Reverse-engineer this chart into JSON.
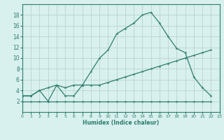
{
  "xlabel": "Humidex (Indice chaleur)",
  "x_values": [
    0,
    1,
    2,
    3,
    4,
    5,
    6,
    7,
    8,
    9,
    10,
    11,
    12,
    13,
    14,
    15,
    16,
    17,
    18,
    19,
    20,
    21,
    22,
    23
  ],
  "line1_y": [
    3,
    3,
    4,
    2,
    5,
    3,
    3,
    5,
    7.5,
    10,
    11.5,
    14.5,
    15.5,
    16.5,
    18,
    18.5,
    16.5,
    14,
    11.8,
    11,
    6.5,
    4.5,
    3,
    null
  ],
  "line2_y": [
    3,
    3,
    4,
    4.5,
    5,
    4.5,
    5,
    5,
    5,
    5,
    5.5,
    6,
    6.5,
    7,
    7.5,
    8,
    8.5,
    9,
    9.5,
    10,
    10.5,
    11,
    11.5,
    null
  ],
  "line3_y": [
    2,
    2,
    2,
    2,
    2,
    2,
    2,
    2,
    2,
    2,
    2,
    2,
    2,
    2,
    2,
    2,
    2,
    2,
    2,
    2,
    2,
    2,
    2,
    null
  ],
  "line_color": "#2d7d6e",
  "bg_color": "#d8f0ee",
  "grid_color": "#c0d8d4",
  "ylim": [
    0,
    20
  ],
  "xlim": [
    0,
    23
  ],
  "yticks": [
    2,
    4,
    6,
    8,
    10,
    12,
    14,
    16,
    18
  ],
  "xticks": [
    0,
    1,
    2,
    3,
    4,
    5,
    6,
    7,
    8,
    9,
    10,
    11,
    12,
    13,
    14,
    15,
    16,
    17,
    18,
    19,
    20,
    21,
    22,
    23
  ]
}
